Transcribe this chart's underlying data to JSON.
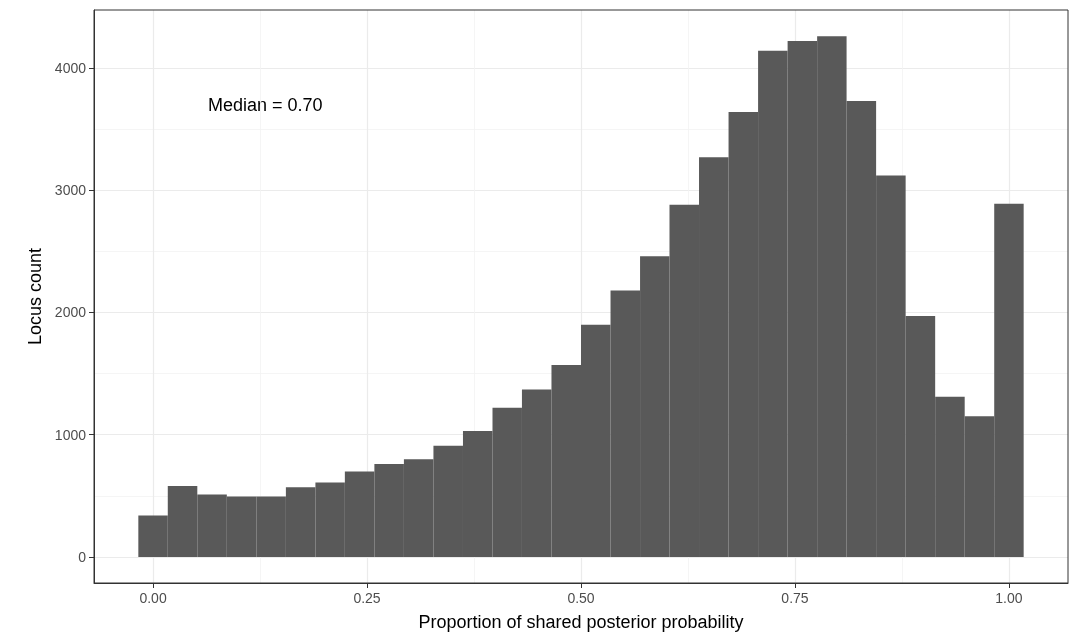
{
  "chart_data": {
    "type": "histogram",
    "xlabel": "Proportion of shared posterior probability",
    "ylabel": "Locus count",
    "annotations": [
      "Median = 0.70"
    ],
    "bins": [
      -0.0172,
      0.0172,
      0.0517,
      0.0862,
      0.1207,
      0.1552,
      0.1897,
      0.2241,
      0.2586,
      0.2931,
      0.3276,
      0.3621,
      0.3966,
      0.431,
      0.4655,
      0.5,
      0.5345,
      0.569,
      0.6034,
      0.6379,
      0.6724,
      0.7069,
      0.7414,
      0.7759,
      0.8103,
      0.8448,
      0.8793,
      0.9138,
      0.9483,
      0.9828,
      1.0172
    ],
    "values": [
      340,
      580,
      510,
      495,
      495,
      570,
      610,
      700,
      760,
      800,
      910,
      1030,
      1220,
      1370,
      1570,
      1900,
      2180,
      2460,
      2880,
      3270,
      3640,
      4140,
      4220,
      4260,
      3730,
      3120,
      1970,
      1310,
      1150,
      2890
    ],
    "color": "#595959",
    "xlim": [
      -0.069,
      1.069
    ],
    "ylim": [
      -213,
      4474
    ],
    "xticks": [
      {
        "value": 0,
        "label": "0.00"
      },
      {
        "value": 0.25,
        "label": "0.25"
      },
      {
        "value": 0.5,
        "label": "0.50"
      },
      {
        "value": 0.75,
        "label": "0.75"
      },
      {
        "value": 1,
        "label": "1.00"
      }
    ],
    "yticks": [
      0,
      1000,
      2000,
      3000,
      4000
    ],
    "grid": true
  }
}
